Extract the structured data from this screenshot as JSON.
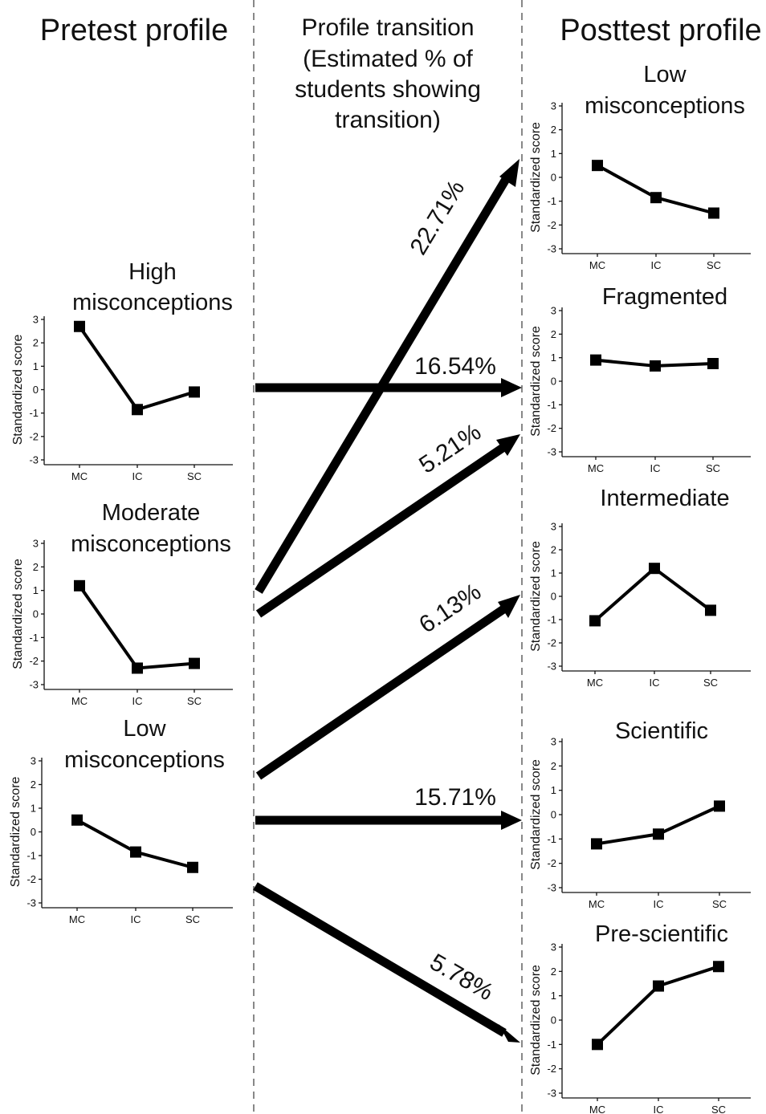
{
  "columns": {
    "pretest": "Pretest profile",
    "transition": [
      "Profile transition",
      "(Estimated % of",
      "students showing",
      "transition)"
    ],
    "posttest": "Posttest profile"
  },
  "y_axis_label": "Standardized score",
  "chart_data": [
    {
      "id": "pre-high",
      "type": "line",
      "title_lines": [
        "High",
        "misconceptions"
      ],
      "categories": [
        "MC",
        "IC",
        "SC"
      ],
      "values": [
        2.7,
        -0.85,
        -0.1
      ],
      "ylim": [
        -3,
        3
      ],
      "yticks": [
        3,
        2,
        1,
        0,
        -1,
        -2,
        -3
      ],
      "ylabel": "Standardized score"
    },
    {
      "id": "pre-moderate",
      "type": "line",
      "title_lines": [
        "Moderate",
        "misconceptions"
      ],
      "categories": [
        "MC",
        "IC",
        "SC"
      ],
      "values": [
        1.2,
        -2.3,
        -2.1
      ],
      "ylim": [
        -3,
        3
      ],
      "yticks": [
        3,
        2,
        1,
        0,
        -1,
        -2,
        -3
      ],
      "ylabel": "Standardized score"
    },
    {
      "id": "pre-low",
      "type": "line",
      "title_lines": [
        "Low",
        "misconceptions"
      ],
      "categories": [
        "MC",
        "IC",
        "SC"
      ],
      "values": [
        0.5,
        -0.85,
        -1.5
      ],
      "ylim": [
        -3,
        3
      ],
      "yticks": [
        3,
        2,
        1,
        0,
        -1,
        -2,
        -3
      ],
      "ylabel": "Standardized score"
    },
    {
      "id": "post-low",
      "type": "line",
      "title_lines": [
        "Low",
        "misconceptions"
      ],
      "categories": [
        "MC",
        "IC",
        "SC"
      ],
      "values": [
        0.5,
        -0.85,
        -1.5
      ],
      "ylim": [
        -3,
        3
      ],
      "yticks": [
        3,
        2,
        1,
        0,
        -1,
        -2,
        -3
      ],
      "ylabel": "Standardized score"
    },
    {
      "id": "post-fragmented",
      "type": "line",
      "title_lines": [
        "Fragmented"
      ],
      "categories": [
        "MC",
        "IC",
        "SC"
      ],
      "values": [
        0.9,
        0.65,
        0.75
      ],
      "ylim": [
        -3,
        3
      ],
      "yticks": [
        3,
        2,
        1,
        0,
        -1,
        -2,
        -3
      ],
      "ylabel": "Standardized score"
    },
    {
      "id": "post-intermediate",
      "type": "line",
      "title_lines": [
        "Intermediate"
      ],
      "categories": [
        "MC",
        "IC",
        "SC"
      ],
      "values": [
        -1.05,
        1.2,
        -0.6
      ],
      "ylim": [
        -3,
        3
      ],
      "yticks": [
        3,
        2,
        1,
        0,
        -1,
        -2,
        -3
      ],
      "ylabel": "Standardized score"
    },
    {
      "id": "post-scientific",
      "type": "line",
      "title_lines": [
        "Scientific"
      ],
      "categories": [
        "MC",
        "IC",
        "SC"
      ],
      "values": [
        -1.2,
        -0.8,
        0.35
      ],
      "ylim": [
        -3,
        3
      ],
      "yticks": [
        3,
        2,
        1,
        0,
        -1,
        -2,
        -3
      ],
      "ylabel": "Standardized score"
    },
    {
      "id": "post-prescientific",
      "type": "line",
      "title_lines": [
        "Pre-scientific"
      ],
      "categories": [
        "MC",
        "IC",
        "SC"
      ],
      "values": [
        -1.0,
        1.4,
        2.2
      ],
      "ylim": [
        -3,
        3
      ],
      "yticks": [
        3,
        2,
        1,
        0,
        -1,
        -2,
        -3
      ],
      "ylabel": "Standardized score"
    }
  ],
  "transitions": [
    {
      "from": "Moderate misconceptions",
      "to": "Low misconceptions",
      "label": "22.71%"
    },
    {
      "from": "High misconceptions",
      "to": "Fragmented",
      "label": "16.54%"
    },
    {
      "from": "Moderate misconceptions",
      "to": "Fragmented",
      "label": "5.21%"
    },
    {
      "from": "Low misconceptions",
      "to": "Intermediate",
      "label": "6.13%"
    },
    {
      "from": "Low misconceptions",
      "to": "Scientific",
      "label": "15.71%"
    },
    {
      "from": "Low misconceptions",
      "to": "Pre-scientific",
      "label": "5.78%"
    }
  ]
}
